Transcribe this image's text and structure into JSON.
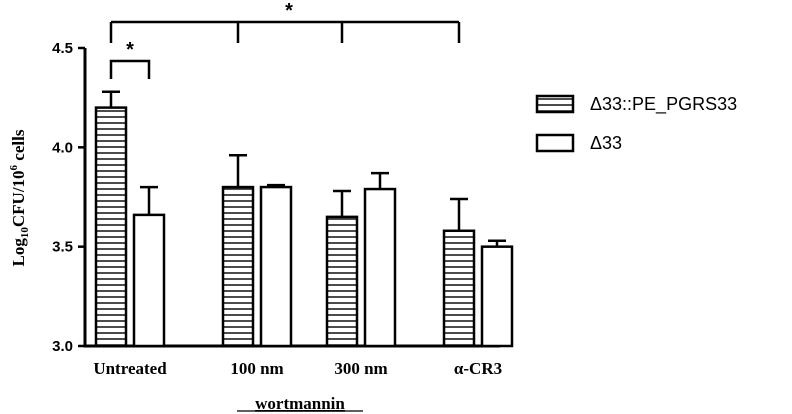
{
  "chart_data": {
    "type": "bar",
    "categories": [
      "Untreated",
      "100 nm",
      "300 nm",
      "α-CR3"
    ],
    "series": [
      {
        "name": "Δ33::PE_PGRS33",
        "values": [
          4.2,
          3.8,
          3.65,
          3.58
        ],
        "errors": [
          0.08,
          0.16,
          0.13,
          0.16
        ],
        "pattern": "horizontal-stripes"
      },
      {
        "name": "Δ33",
        "values": [
          3.66,
          3.8,
          3.79,
          3.5
        ],
        "errors": [
          0.14,
          0.01,
          0.08,
          0.03
        ],
        "pattern": "white"
      }
    ],
    "xlabel": "wortmannin",
    "ylabel_parts": {
      "base": "Log",
      "sub": "10",
      "mid": "CFU/10",
      "sup": "6",
      "end": " cells"
    },
    "ylim": [
      3.0,
      4.5
    ],
    "yticks": [
      "3.0",
      "3.5",
      "4.0",
      "4.5"
    ],
    "legend_position": "right",
    "annotations": {
      "inner_star": "*",
      "outer_star": "*"
    }
  }
}
